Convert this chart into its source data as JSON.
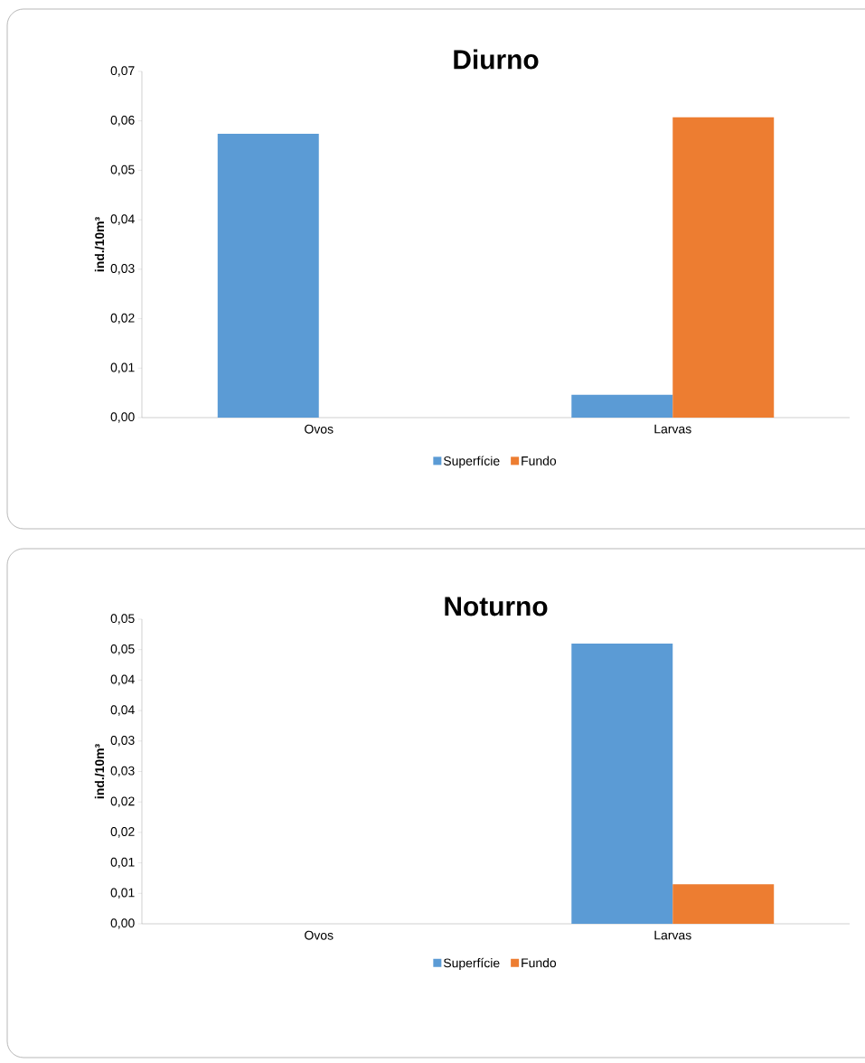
{
  "chart_data": [
    {
      "type": "bar",
      "title": "Diurno",
      "ylabel": "ind./10m³",
      "categories": [
        "Ovos",
        "Larvas"
      ],
      "series": [
        {
          "name": "Superfície",
          "color": "#5b9bd5",
          "values": [
            0.0574,
            0.0046
          ]
        },
        {
          "name": "Fundo",
          "color": "#ed7d31",
          "values": [
            0,
            0.0607
          ]
        }
      ],
      "ylim": [
        0,
        0.07
      ],
      "yticks": [
        {
          "value": 0,
          "label": "0,00"
        },
        {
          "value": 0.01,
          "label": "0,01"
        },
        {
          "value": 0.02,
          "label": "0,02"
        },
        {
          "value": 0.03,
          "label": "0,03"
        },
        {
          "value": 0.04,
          "label": "0,04"
        },
        {
          "value": 0.05,
          "label": "0,05"
        },
        {
          "value": 0.06,
          "label": "0,06"
        },
        {
          "value": 0.07,
          "label": "0,07"
        }
      ],
      "grid": false,
      "legend": "bottom"
    },
    {
      "type": "bar",
      "title": "Noturno",
      "ylabel": "ind./10m³",
      "categories": [
        "Ovos",
        "Larvas"
      ],
      "series": [
        {
          "name": "Superfície",
          "color": "#5b9bd5",
          "values": [
            0,
            0.046
          ]
        },
        {
          "name": "Fundo",
          "color": "#ed7d31",
          "values": [
            0,
            0.0065
          ]
        }
      ],
      "ylim": [
        0,
        0.05
      ],
      "yticks": [
        {
          "value": 0,
          "label": "0,00"
        },
        {
          "value": 0.005,
          "label": "0,01"
        },
        {
          "value": 0.01,
          "label": "0,01"
        },
        {
          "value": 0.015,
          "label": "0,02"
        },
        {
          "value": 0.02,
          "label": "0,02"
        },
        {
          "value": 0.025,
          "label": "0,03"
        },
        {
          "value": 0.03,
          "label": "0,03"
        },
        {
          "value": 0.035,
          "label": "0,04"
        },
        {
          "value": 0.04,
          "label": "0,04"
        },
        {
          "value": 0.045,
          "label": "0,05"
        },
        {
          "value": 0.05,
          "label": "0,05"
        }
      ],
      "grid": false,
      "legend": "bottom"
    }
  ]
}
